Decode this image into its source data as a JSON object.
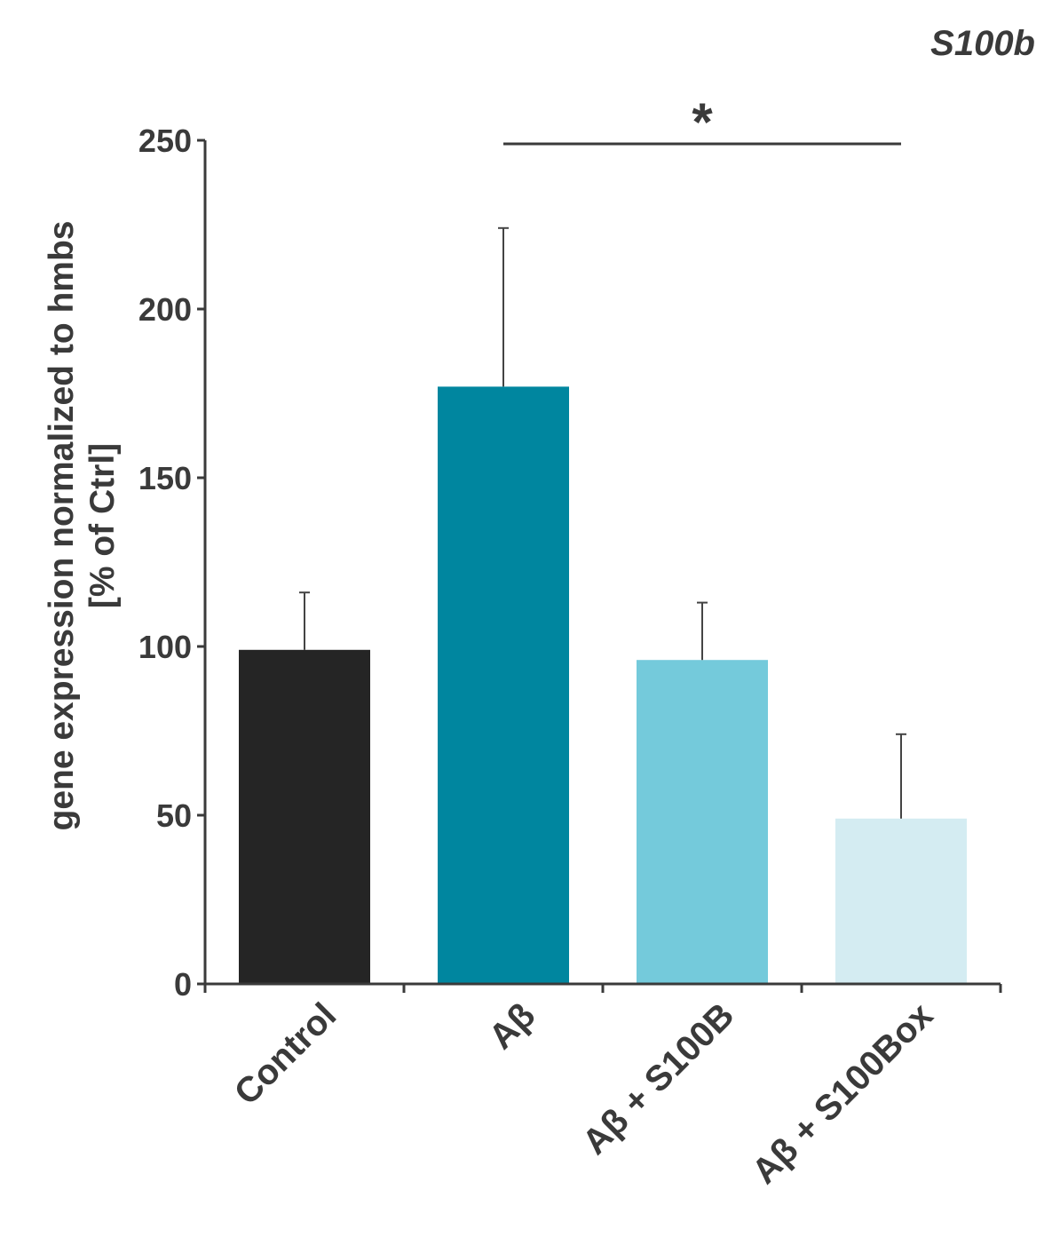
{
  "chart_data": {
    "type": "bar",
    "title": "S100b",
    "ylabel_line1": "gene expression normalized to hmbs",
    "ylabel_line2": "[% of Ctrl]",
    "xlabel": "",
    "categories": [
      "Control",
      "Aβ",
      "Aβ + S100B",
      "Aβ + S100Box"
    ],
    "values": [
      99,
      177,
      96,
      49
    ],
    "errors": [
      17,
      47,
      17,
      25
    ],
    "colors": [
      "#252525",
      "#00869f",
      "#74cadb",
      "#d4ecf2"
    ],
    "ylim": [
      0,
      250
    ],
    "yticks": [
      0,
      50,
      100,
      150,
      200,
      250
    ],
    "grid": false,
    "significance": [
      {
        "from": "Aβ",
        "to": "Aβ + S100Box",
        "label": "*"
      }
    ]
  }
}
